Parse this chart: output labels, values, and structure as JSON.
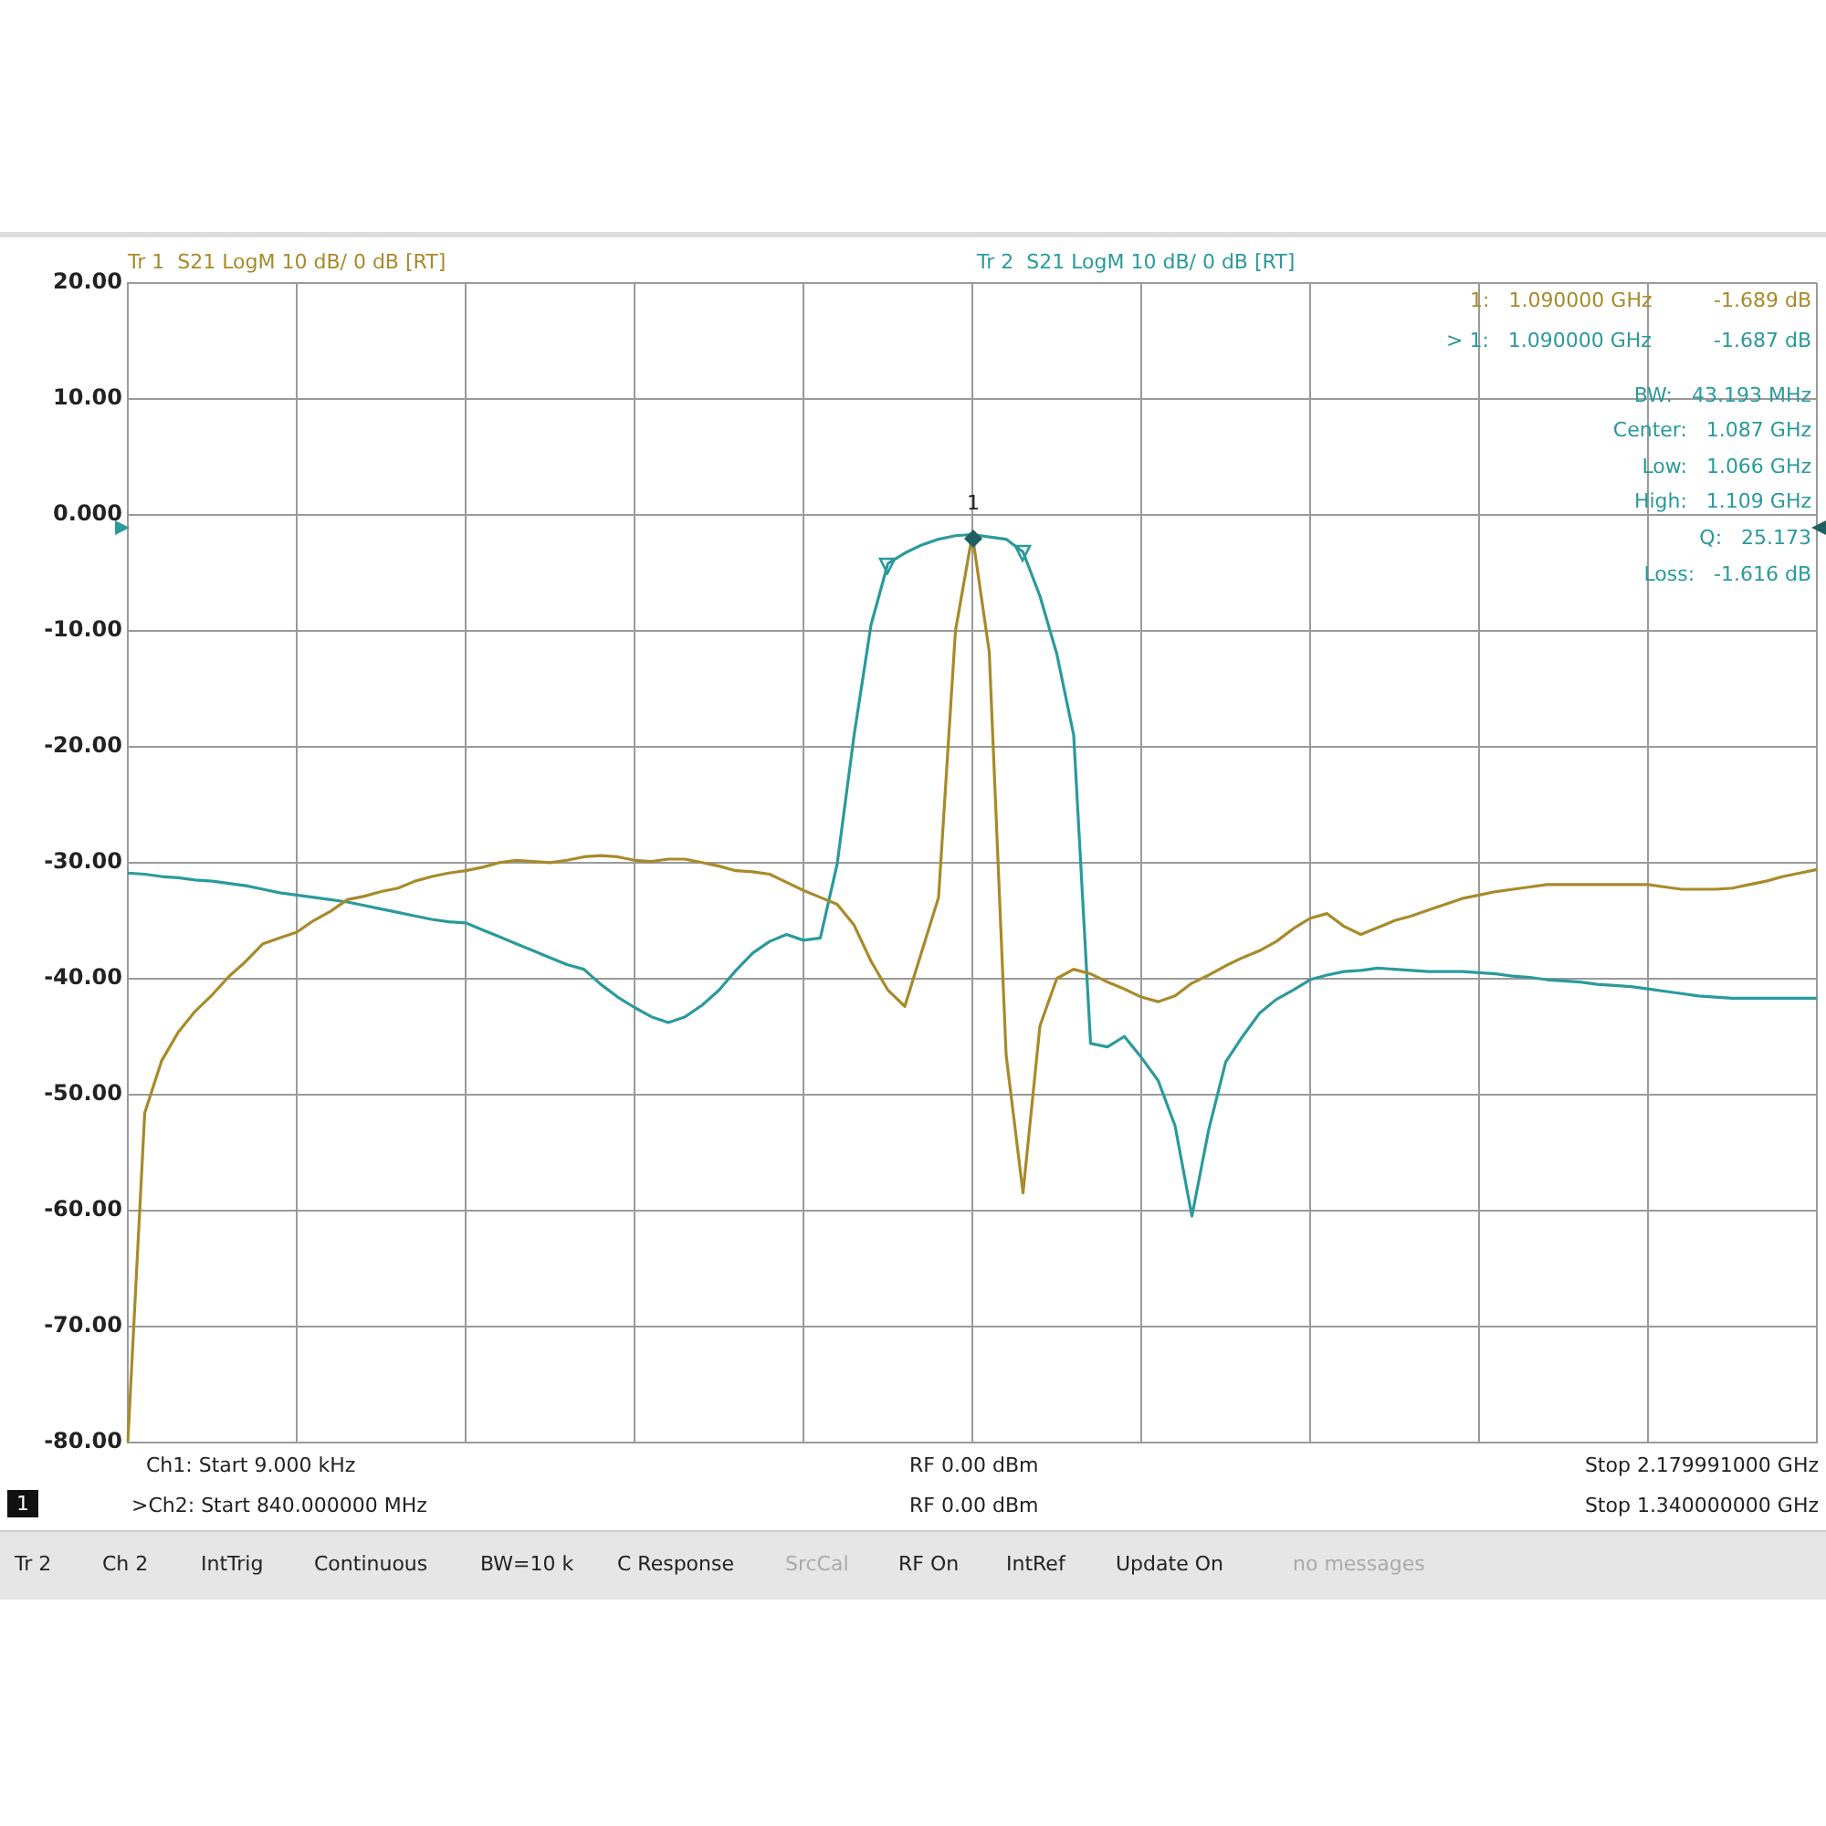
{
  "chart_data": {
    "type": "line",
    "categories": [
      null,
      null,
      null,
      null,
      null,
      null,
      null,
      null,
      null,
      null,
      null,
      null,
      null,
      null,
      null,
      null,
      null,
      null,
      null,
      null,
      null,
      null,
      null,
      null,
      null,
      null,
      null,
      null,
      null,
      null,
      null,
      null,
      null,
      null,
      null,
      null,
      null,
      null,
      null,
      null,
      null,
      null,
      null,
      null,
      null,
      null,
      null,
      null,
      null,
      null,
      null,
      null,
      null,
      null,
      null,
      null,
      null,
      null,
      null,
      null,
      null,
      null,
      null,
      null,
      null,
      null,
      null,
      null,
      null,
      null,
      null,
      null,
      null,
      null,
      null,
      null,
      null,
      null,
      null,
      null,
      null,
      null,
      null,
      null,
      null,
      null,
      null,
      null,
      null,
      null,
      null,
      null,
      null,
      null,
      null,
      null,
      null,
      null,
      null,
      null,
      null
    ],
    "series": [
      {
        "name": "Tr 1  S21 LogM 10 dB/ 0 dB [RT]",
        "color": "#a88a2a",
        "values": [
          -80,
          -51.6,
          -47.1,
          -44.6,
          -42.8,
          -41.4,
          -39.8,
          -38.5,
          -37,
          -36.5,
          -36,
          -35,
          -34.2,
          -33.2,
          -32.9,
          -32.5,
          -32.2,
          -31.6,
          -31.2,
          -30.9,
          -30.7,
          -30.4,
          -30,
          -29.8,
          -29.9,
          -30,
          -29.8,
          -29.5,
          -29.4,
          -29.5,
          -29.8,
          -29.9,
          -29.7,
          -29.7,
          -30,
          -30.3,
          -30.7,
          -30.8,
          -31,
          -31.7,
          -32.4,
          -33,
          -33.6,
          -35.4,
          -38.5,
          -41,
          -42.4,
          -37.7,
          -33,
          -10,
          -1.7,
          -11.8,
          -46.6,
          -58.5,
          -44.1,
          -40,
          -39.2,
          -39.6,
          -40.3,
          -40.9,
          -41.6,
          -42,
          -41.5,
          -40.4,
          -39.7,
          -38.9,
          -38.2,
          -37.6,
          -36.8,
          -35.7,
          -34.8,
          -34.4,
          -35.5,
          -36.2,
          -35.6,
          -35,
          -34.6,
          -34.1,
          -33.6,
          -33.1,
          -32.8,
          -32.5,
          -32.3,
          -32.1,
          -31.9,
          -31.9,
          -31.9,
          -31.9,
          -31.9,
          -31.9,
          -31.9,
          -32.1,
          -32.3,
          -32.3,
          -32.3,
          -32.2,
          -31.9,
          -31.6,
          -31.2,
          -30.9,
          -30.6
        ]
      },
      {
        "name": "Tr 2  S21 LogM 10 dB/ 0 dB [RT]",
        "color": "#2a9a9c",
        "values": [
          -30.9,
          -31,
          -31.2,
          -31.3,
          -31.5,
          -31.6,
          -31.8,
          -32,
          -32.3,
          -32.6,
          -32.8,
          -33,
          -33.2,
          -33.4,
          -33.7,
          -34,
          -34.3,
          -34.6,
          -34.9,
          -35.1,
          -35.2,
          -35.8,
          -36.4,
          -37,
          -37.6,
          -38.2,
          -38.8,
          -39.2,
          -40.5,
          -41.6,
          -42.5,
          -43.3,
          -43.8,
          -43.3,
          -42.3,
          -41,
          -39.3,
          -37.8,
          -36.8,
          -36.2,
          -36.7,
          -36.5,
          -30.1,
          -19,
          -9.5,
          -4.2,
          -3.3,
          -2.6,
          -2.1,
          -1.8,
          -1.7,
          -1.9,
          -2.1,
          -3.2,
          -7,
          -12,
          -19,
          -45.6,
          -45.9,
          -45,
          -46.8,
          -48.8,
          -52.7,
          -60.5,
          -53,
          -47.2,
          -45,
          -43,
          -41.8,
          -41,
          -40.1,
          -39.7,
          -39.4,
          -39.3,
          -39.1,
          -39.2,
          -39.3,
          -39.4,
          -39.4,
          -39.4,
          -39.5,
          -39.6,
          -39.8,
          -39.9,
          -40.1,
          -40.2,
          -40.3,
          -40.5,
          -40.6,
          -40.7,
          -40.9,
          -41.1,
          -41.3,
          -41.5,
          -41.6,
          -41.7,
          -41.7,
          -41.7,
          -41.7,
          -41.7,
          -41.7
        ]
      }
    ],
    "ylim": [
      -80,
      20
    ],
    "yticks": [
      {
        "value": 20,
        "label": "20.00"
      },
      {
        "value": 10,
        "label": "10.00"
      },
      {
        "value": 0,
        "label": "0.000"
      },
      {
        "value": -10,
        "label": "-10.00"
      },
      {
        "value": -20,
        "label": "-20.00"
      },
      {
        "value": -30,
        "label": "-30.00"
      },
      {
        "value": -40,
        "label": "-40.00"
      },
      {
        "value": -50,
        "label": "-50.00"
      },
      {
        "value": -60,
        "label": "-60.00"
      },
      {
        "value": -70,
        "label": "-70.00"
      },
      {
        "value": -80,
        "label": "-80.00"
      }
    ],
    "grid": true,
    "legend": false,
    "marker": "none",
    "line_style": "solid",
    "annotations": [
      "1:   1.090000 GHz",
      "-1.689 dB",
      "> 1:   1.090000 GHz",
      "-1.687 dB",
      "BW:   43.193 MHz",
      "Center:   1.087 GHz",
      "Low:   1.066 GHz",
      "High:   1.109 GHz",
      "Q:   25.173",
      "Loss:   -1.616 dB",
      "1",
      "Ch1: Start 9.000 kHz",
      "RF 0.00 dBm",
      "Stop 2.179991000 GHz",
      ">Ch2: Start 840.000000 MHz",
      "RF 0.00 dBm",
      "Stop 1.340000000 GHz",
      "1",
      "Tr 2",
      "Ch 2",
      "IntTrig",
      "Continuous",
      "BW=10 k",
      "C Response",
      "SrcCal",
      "RF On",
      "IntRef",
      "Update On",
      "no messages"
    ]
  }
}
